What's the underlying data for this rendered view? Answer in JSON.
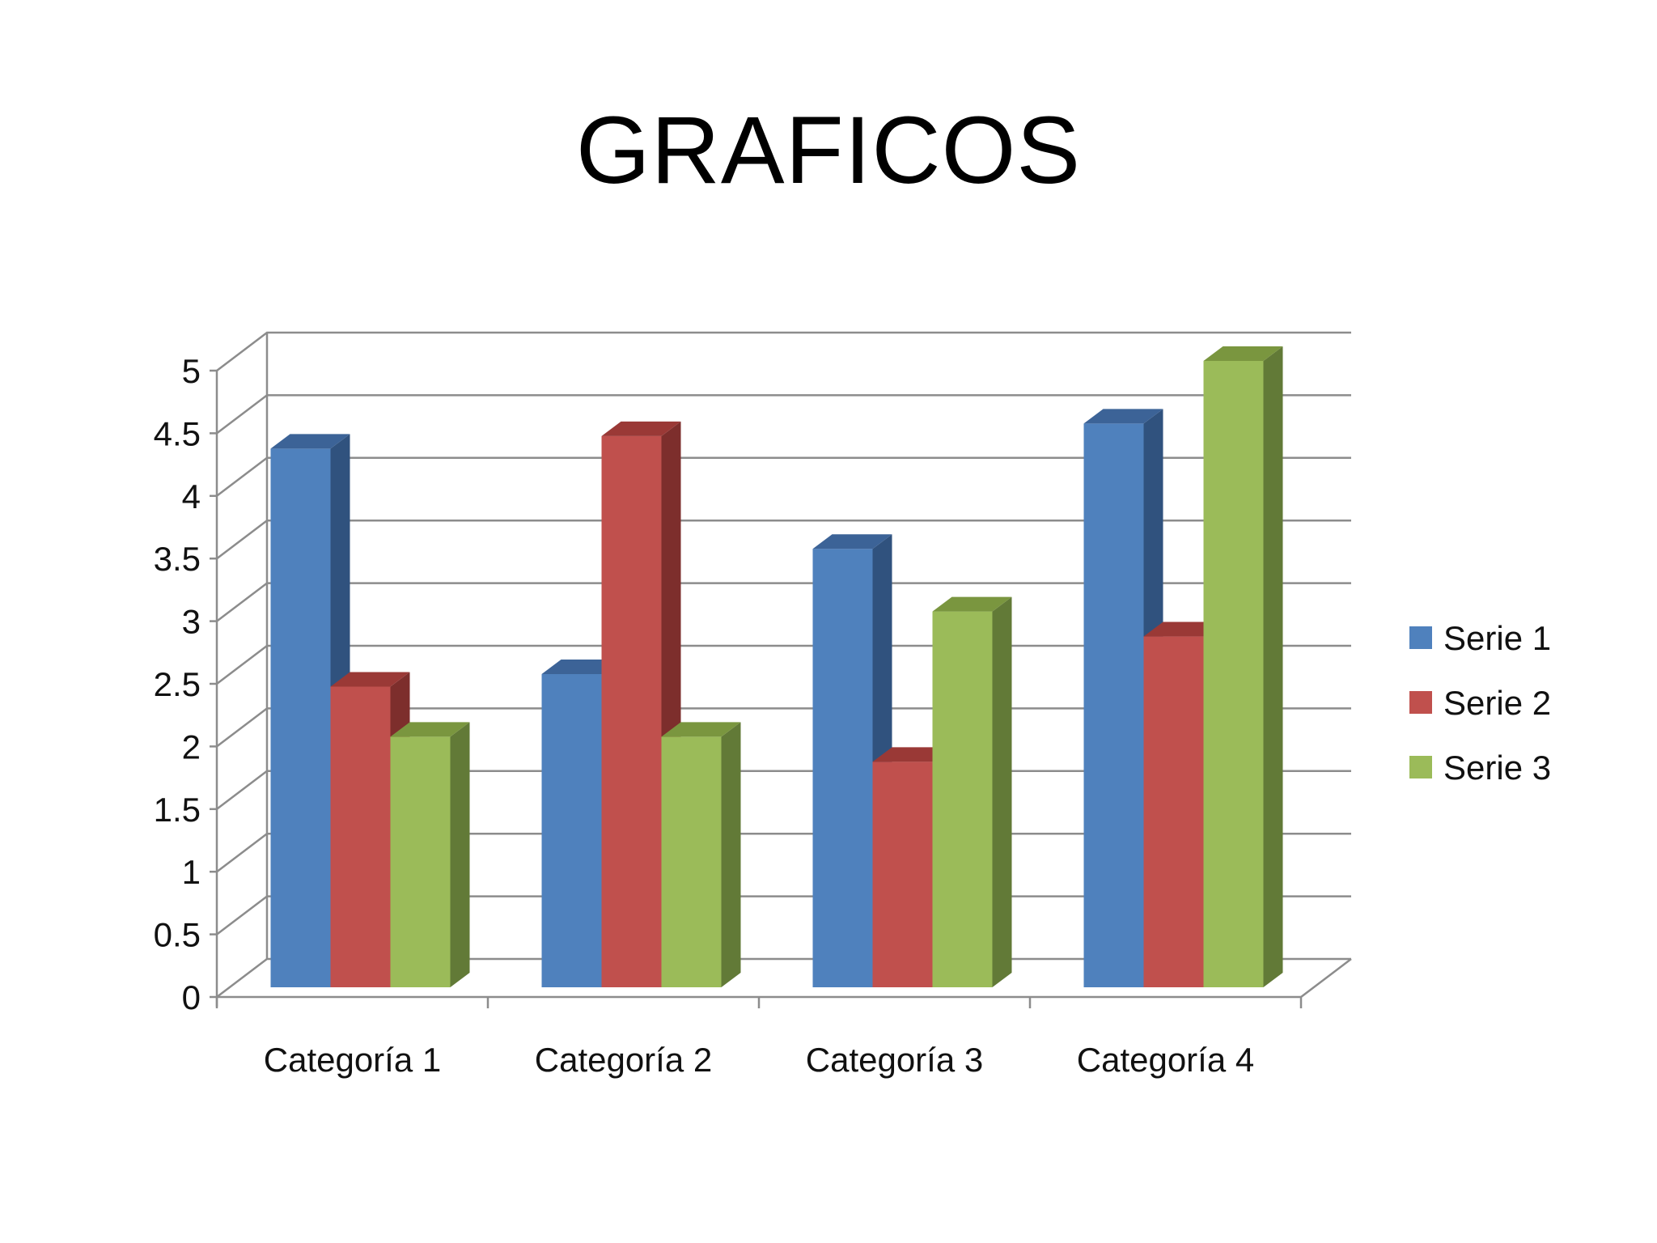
{
  "title": "GRAFICOS",
  "colors": {
    "series": [
      "#4F81BD",
      "#C0504D",
      "#9BBB59"
    ],
    "series_side": [
      "#30527E",
      "#7D2E2C",
      "#627A37"
    ],
    "series_top": [
      "#3C6397",
      "#9A3936",
      "#7A963F"
    ],
    "grid": "#8C8C8C",
    "axis": "#8C8C8C"
  },
  "chart_data": {
    "type": "bar",
    "style": "3d-clustered-column",
    "categories": [
      "Categoría 1",
      "Categoría 2",
      "Categoría 3",
      "Categoría 4"
    ],
    "series": [
      {
        "name": "Serie 1",
        "values": [
          4.3,
          2.5,
          3.5,
          4.5
        ]
      },
      {
        "name": "Serie 2",
        "values": [
          2.4,
          4.4,
          1.8,
          2.8
        ]
      },
      {
        "name": "Serie 3",
        "values": [
          2,
          2,
          3,
          5
        ]
      }
    ],
    "y_ticks": [
      "0",
      "0.5",
      "1",
      "1.5",
      "2",
      "2.5",
      "3",
      "3.5",
      "4",
      "4.5",
      "5"
    ],
    "ylim": [
      0,
      5
    ],
    "grid": true,
    "legend_position": "right"
  }
}
